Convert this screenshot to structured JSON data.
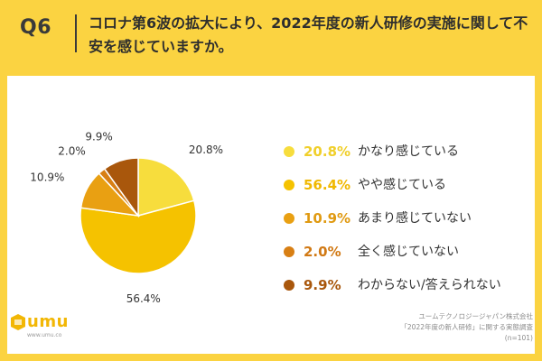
{
  "header": {
    "question_label": "Q6",
    "question_text": "コロナ第6波の拡大により、2022年度の新人研修の実施に関して不安を感じていますか。"
  },
  "chart_data": {
    "type": "pie",
    "title": "",
    "unit": "%",
    "slices": [
      {
        "label": "かなり感じている",
        "value": 20.8,
        "display": "20.8%",
        "color": "#f7dd3d"
      },
      {
        "label": "やや感じている",
        "value": 56.4,
        "display": "56.4%",
        "color": "#f5c200"
      },
      {
        "label": "あまり感じていない",
        "value": 10.9,
        "display": "10.9%",
        "color": "#e9a012"
      },
      {
        "label": "全く感じていない",
        "value": 2.0,
        "display": "2.0%",
        "color": "#d87f14"
      },
      {
        "label": "わからない/答えられない",
        "value": 9.9,
        "display": "9.9%",
        "color": "#a9570c"
      }
    ],
    "legend_position": "right"
  },
  "legend_text_colors": [
    "#f0cf2a",
    "#f0b800",
    "#e09a12",
    "#d17914",
    "#a9570c"
  ],
  "footer": {
    "logo_text": "umu",
    "logo_url": "www.umu.co",
    "source_lines": [
      "ユームテクノロジージャパン株式会社",
      "「2022年度の新人研修」に関する実態調査",
      "(n=101)"
    ]
  },
  "colors": {
    "background": "#fbd341",
    "panel": "#ffffff",
    "text_dark": "#333333"
  }
}
